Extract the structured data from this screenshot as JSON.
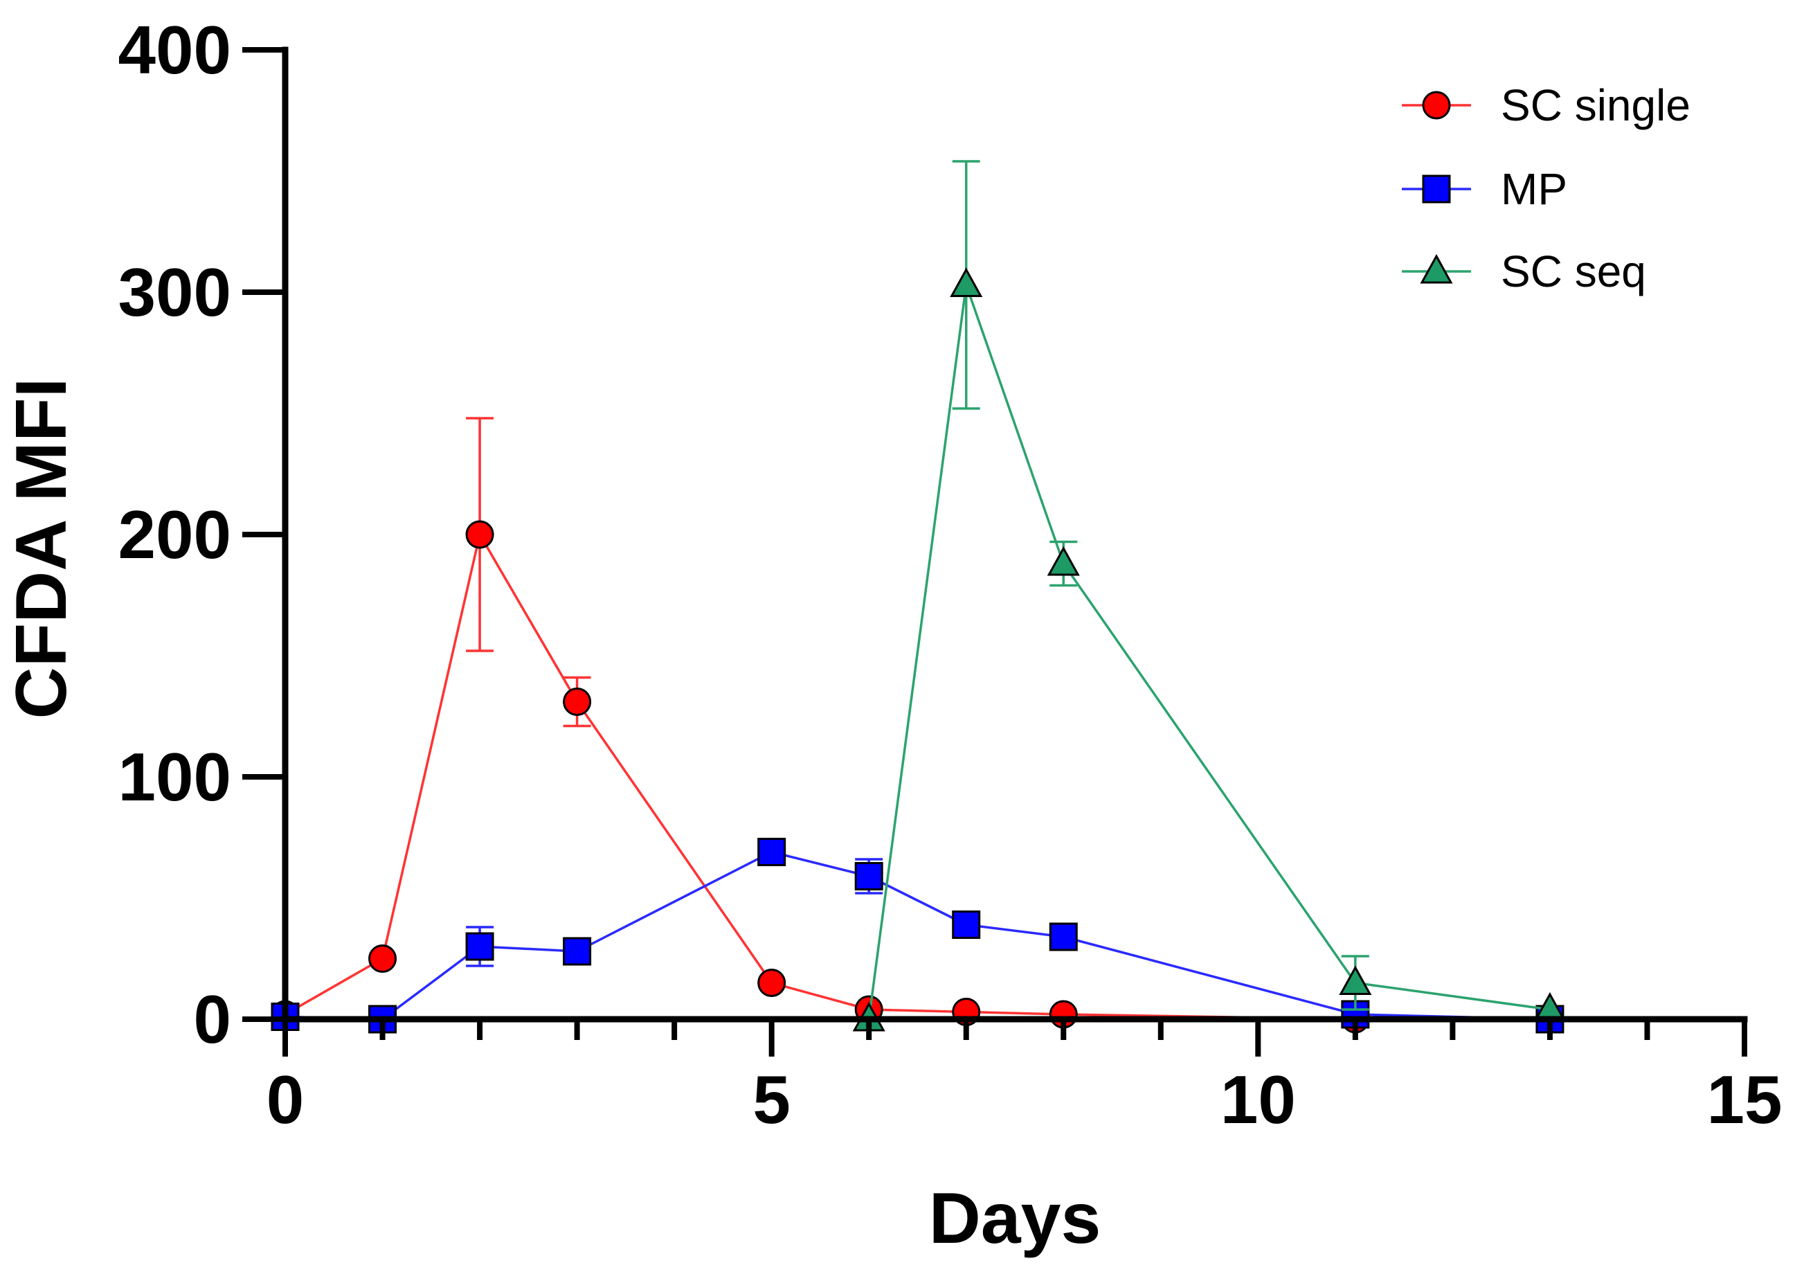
{
  "chart_data": {
    "type": "line",
    "title": "",
    "xlabel": "Days",
    "ylabel": "CFDA MFI",
    "xlim": [
      0,
      15
    ],
    "ylim": [
      0,
      400
    ],
    "xticks": [
      0,
      5,
      10,
      15
    ],
    "yticks": [
      0,
      100,
      200,
      300,
      400
    ],
    "x_minor_step": 1,
    "legend_position": "top-right",
    "series": [
      {
        "name": "SC single",
        "color": "#ff3333",
        "fill": "#ff0000",
        "marker": "circle",
        "points": [
          {
            "x": 0,
            "y": 2,
            "err": 0
          },
          {
            "x": 1,
            "y": 25,
            "err": 0
          },
          {
            "x": 2,
            "y": 200,
            "err": 48
          },
          {
            "x": 3,
            "y": 131,
            "err": 10
          },
          {
            "x": 5,
            "y": 15,
            "err": 0
          },
          {
            "x": 6,
            "y": 4,
            "err": 0
          },
          {
            "x": 7,
            "y": 3,
            "err": 0
          },
          {
            "x": 8,
            "y": 2,
            "err": 0
          },
          {
            "x": 11,
            "y": 0,
            "err": 0
          },
          {
            "x": 13,
            "y": 0,
            "err": 0
          }
        ]
      },
      {
        "name": "MP",
        "color": "#2a2aff",
        "fill": "#0000ff",
        "marker": "square",
        "points": [
          {
            "x": 0,
            "y": 1,
            "err": 0
          },
          {
            "x": 1,
            "y": 0,
            "err": 0
          },
          {
            "x": 2,
            "y": 30,
            "err": 8
          },
          {
            "x": 3,
            "y": 28,
            "err": 0
          },
          {
            "x": 5,
            "y": 69,
            "err": 0
          },
          {
            "x": 6,
            "y": 59,
            "err": 7
          },
          {
            "x": 7,
            "y": 39,
            "err": 0
          },
          {
            "x": 8,
            "y": 34,
            "err": 0
          },
          {
            "x": 11,
            "y": 2,
            "err": 0
          },
          {
            "x": 13,
            "y": 0,
            "err": 0
          }
        ]
      },
      {
        "name": "SC seq",
        "color": "#2ca36f",
        "fill": "#1e9a66",
        "marker": "triangle",
        "points": [
          {
            "x": 6,
            "y": 0,
            "err": 0
          },
          {
            "x": 7,
            "y": 303,
            "err": 51
          },
          {
            "x": 8,
            "y": 188,
            "err": 9
          },
          {
            "x": 11,
            "y": 15,
            "err": 11
          },
          {
            "x": 13,
            "y": 4,
            "err": 0
          }
        ]
      }
    ]
  }
}
